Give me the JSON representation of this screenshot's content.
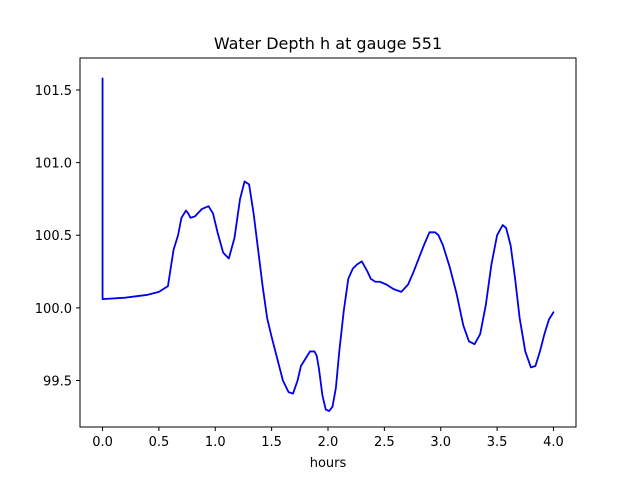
{
  "chart_data": {
    "type": "line",
    "title": "Water Depth h at gauge 551",
    "xlabel": "hours",
    "ylabel": "",
    "xlim": [
      -0.2,
      4.2
    ],
    "ylim": [
      99.18,
      101.72
    ],
    "xticks": [
      0.0,
      0.5,
      1.0,
      1.5,
      2.0,
      2.5,
      3.0,
      3.5,
      4.0
    ],
    "xtick_labels": [
      "0.0",
      "0.5",
      "1.0",
      "1.5",
      "2.0",
      "2.5",
      "3.0",
      "3.5",
      "4.0"
    ],
    "yticks": [
      99.5,
      100.0,
      100.5,
      101.0,
      101.5
    ],
    "ytick_labels": [
      "99.5",
      "100.0",
      "100.5",
      "101.0",
      "101.5"
    ],
    "grid": false,
    "series": [
      {
        "color": "#0000ee",
        "x": [
          0.0,
          0.0,
          0.0,
          0.2,
          0.4,
          0.5,
          0.58,
          0.63,
          0.67,
          0.7,
          0.74,
          0.76,
          0.78,
          0.82,
          0.88,
          0.94,
          0.98,
          1.02,
          1.07,
          1.12,
          1.17,
          1.22,
          1.26,
          1.3,
          1.34,
          1.38,
          1.42,
          1.46,
          1.5,
          1.55,
          1.6,
          1.65,
          1.69,
          1.73,
          1.76,
          1.8,
          1.84,
          1.88,
          1.9,
          1.92,
          1.95,
          1.98,
          2.01,
          2.04,
          2.07,
          2.1,
          2.14,
          2.18,
          2.22,
          2.26,
          2.3,
          2.35,
          2.38,
          2.42,
          2.46,
          2.52,
          2.58,
          2.65,
          2.71,
          2.76,
          2.8,
          2.85,
          2.9,
          2.95,
          2.98,
          3.02,
          3.08,
          3.14,
          3.2,
          3.25,
          3.3,
          3.35,
          3.4,
          3.45,
          3.5,
          3.55,
          3.58,
          3.62,
          3.66,
          3.7,
          3.75,
          3.8,
          3.84,
          3.88,
          3.92,
          3.96,
          4.0
        ],
        "y": [
          101.58,
          100.06,
          100.06,
          100.07,
          100.09,
          100.11,
          100.15,
          100.4,
          100.5,
          100.62,
          100.67,
          100.65,
          100.62,
          100.63,
          100.68,
          100.7,
          100.65,
          100.52,
          100.38,
          100.34,
          100.48,
          100.75,
          100.87,
          100.85,
          100.65,
          100.4,
          100.15,
          99.93,
          99.8,
          99.65,
          99.5,
          99.42,
          99.41,
          99.5,
          99.6,
          99.65,
          99.7,
          99.7,
          99.67,
          99.58,
          99.4,
          99.3,
          99.29,
          99.32,
          99.45,
          99.7,
          99.98,
          100.2,
          100.27,
          100.3,
          100.32,
          100.25,
          100.2,
          100.18,
          100.18,
          100.16,
          100.13,
          100.11,
          100.16,
          100.25,
          100.33,
          100.43,
          100.52,
          100.52,
          100.5,
          100.43,
          100.28,
          100.1,
          99.88,
          99.77,
          99.75,
          99.82,
          100.02,
          100.3,
          100.5,
          100.57,
          100.55,
          100.43,
          100.2,
          99.93,
          99.7,
          99.59,
          99.6,
          99.7,
          99.82,
          99.92,
          99.97
        ]
      }
    ]
  }
}
